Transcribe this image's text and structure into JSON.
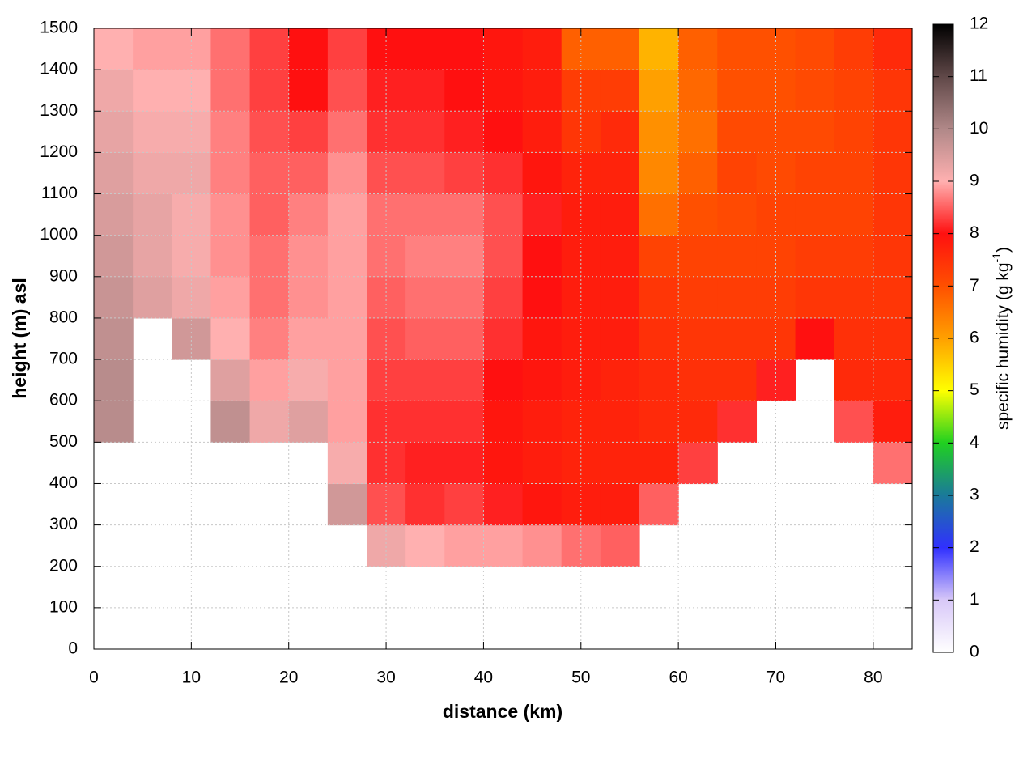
{
  "chart_data": {
    "type": "heatmap",
    "x_label": "distance (km)",
    "y_label": "height (m) asl",
    "colorbar_label": [
      "specific humidity (g kg",
      "-1",
      ")"
    ],
    "xlim": [
      0,
      84
    ],
    "ylim": [
      0,
      1500
    ],
    "xticks": [
      0,
      10,
      20,
      30,
      40,
      50,
      60,
      70,
      80
    ],
    "yticks": [
      0,
      100,
      200,
      300,
      400,
      500,
      600,
      700,
      800,
      900,
      1000,
      1100,
      1200,
      1300,
      1400,
      1500
    ],
    "zlim": [
      0,
      12
    ],
    "zticks": [
      0,
      1,
      2,
      3,
      4,
      5,
      6,
      7,
      8,
      9,
      10,
      11,
      12
    ],
    "colors": [
      "#ffffff",
      "#d8c8f8",
      "#3030ff",
      "#1a7a9a",
      "#20d020",
      "#ffff00",
      "#ffa000",
      "#ff5000",
      "#ff1010",
      "#ffb0b0",
      "#b08888",
      "#604848",
      "#000000"
    ],
    "grid": true,
    "x": [
      2,
      6,
      10,
      14,
      18,
      22,
      26,
      30,
      34,
      38,
      42,
      46,
      50,
      54,
      58,
      62,
      66,
      70,
      74,
      78,
      82
    ],
    "y": [
      250,
      350,
      450,
      550,
      650,
      750,
      850,
      950,
      1050,
      1150,
      1250,
      1350,
      1450
    ],
    "values": [
      [
        null,
        null,
        null,
        9.9,
        9.9,
        9.8,
        9.7,
        9.6,
        9.5,
        9.4,
        9.3,
        9.2,
        9.0
      ],
      [
        null,
        null,
        null,
        null,
        null,
        null,
        9.4,
        9.3,
        9.3,
        9.2,
        9.1,
        9.0,
        8.9
      ],
      [
        null,
        null,
        null,
        null,
        null,
        9.6,
        9.2,
        9.1,
        9.1,
        9.2,
        9.1,
        9.0,
        8.9
      ],
      [
        null,
        null,
        null,
        9.8,
        9.4,
        9.0,
        8.9,
        8.8,
        8.8,
        8.7,
        8.7,
        8.6,
        8.6
      ],
      [
        null,
        null,
        null,
        9.2,
        8.9,
        8.7,
        8.6,
        8.6,
        8.5,
        8.5,
        8.4,
        8.3,
        8.3
      ],
      [
        null,
        null,
        null,
        9.4,
        9.1,
        8.9,
        8.8,
        8.8,
        8.7,
        8.5,
        8.3,
        8.0,
        8.0
      ],
      [
        null,
        9.6,
        9.1,
        8.9,
        8.9,
        8.9,
        8.9,
        8.9,
        8.9,
        8.8,
        8.6,
        8.4,
        8.3
      ],
      [
        9.2,
        8.4,
        8.2,
        8.2,
        8.3,
        8.4,
        8.5,
        8.6,
        8.6,
        8.4,
        8.2,
        8.1,
        8.0
      ],
      [
        9.0,
        8.2,
        8.1,
        8.2,
        8.3,
        8.5,
        8.6,
        8.7,
        8.6,
        8.4,
        8.2,
        8.1,
        8.0
      ],
      [
        8.9,
        8.3,
        8.1,
        8.2,
        8.3,
        8.5,
        8.6,
        8.7,
        8.6,
        8.3,
        8.1,
        8.0,
        8.0
      ],
      [
        8.9,
        8.1,
        7.9,
        7.9,
        8.0,
        8.2,
        8.3,
        8.4,
        8.4,
        8.2,
        8.0,
        7.9,
        7.9
      ],
      [
        8.8,
        7.9,
        7.8,
        7.8,
        7.9,
        7.9,
        8.0,
        8.0,
        8.1,
        7.9,
        7.8,
        7.8,
        7.8
      ],
      [
        8.6,
        7.8,
        7.7,
        7.7,
        7.8,
        7.8,
        7.8,
        7.8,
        7.8,
        7.7,
        7.4,
        7.3,
        6.8
      ],
      [
        8.5,
        7.8,
        7.7,
        7.7,
        7.7,
        7.8,
        7.8,
        7.8,
        7.8,
        7.7,
        7.6,
        7.3,
        6.8
      ],
      [
        null,
        8.5,
        7.7,
        7.6,
        7.6,
        7.5,
        7.4,
        7.2,
        6.6,
        6.3,
        6.2,
        6.0,
        5.8
      ],
      [
        null,
        null,
        8.3,
        7.6,
        7.5,
        7.4,
        7.3,
        7.2,
        7.0,
        6.8,
        6.6,
        6.7,
        6.8
      ],
      [
        null,
        null,
        null,
        8.2,
        7.5,
        7.4,
        7.3,
        7.2,
        7.1,
        7.2,
        7.1,
        7.0,
        7.0
      ],
      [
        null,
        null,
        null,
        null,
        8.1,
        7.4,
        7.3,
        7.2,
        7.2,
        7.1,
        7.1,
        7.0,
        7.0
      ],
      [
        null,
        null,
        null,
        null,
        null,
        8.0,
        7.4,
        7.3,
        7.2,
        7.2,
        7.1,
        7.1,
        7.1
      ],
      [
        null,
        null,
        null,
        8.4,
        7.6,
        7.5,
        7.4,
        7.3,
        7.2,
        7.2,
        7.2,
        7.2,
        7.3
      ],
      [
        null,
        null,
        8.6,
        7.8,
        7.6,
        7.5,
        7.4,
        7.4,
        7.4,
        7.4,
        7.4,
        7.4,
        7.6
      ]
    ]
  }
}
